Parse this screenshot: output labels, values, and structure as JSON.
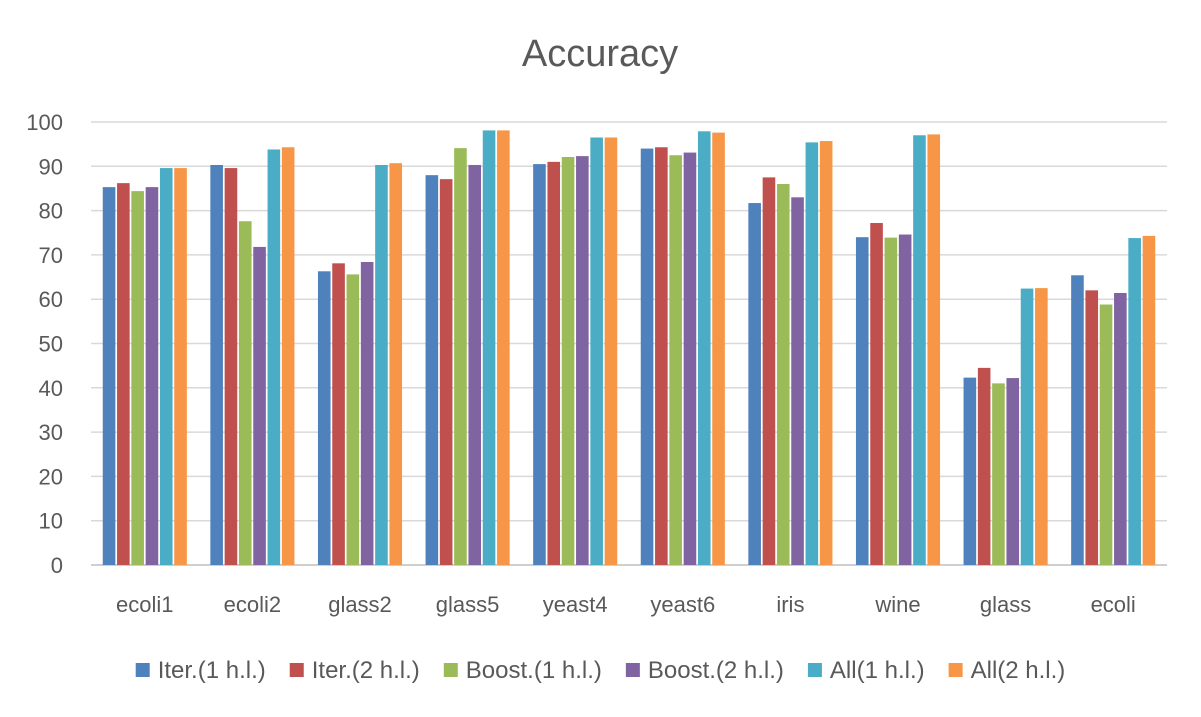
{
  "chart_data": {
    "type": "bar",
    "title": "Accuracy",
    "xlabel": "",
    "ylabel": "",
    "ylim": [
      0,
      100
    ],
    "yticks": [
      0,
      10,
      20,
      30,
      40,
      50,
      60,
      70,
      80,
      90,
      100
    ],
    "grid": true,
    "legend_position": "bottom",
    "categories": [
      "ecoli1",
      "ecoli2",
      "glass2",
      "glass5",
      "yeast4",
      "yeast6",
      "iris",
      "wine",
      "glass",
      "ecoli"
    ],
    "series": [
      {
        "name": "Iter.(1 h.l.)",
        "color": "#4F81BD",
        "values": [
          85.3,
          90.3,
          66.3,
          88.0,
          90.5,
          94.0,
          81.7,
          74.0,
          42.3,
          65.4
        ]
      },
      {
        "name": "Iter.(2 h.l.)",
        "color": "#C0504D",
        "values": [
          86.2,
          89.6,
          68.1,
          87.1,
          91.0,
          94.3,
          87.5,
          77.2,
          44.5,
          62.0
        ]
      },
      {
        "name": "Boost.(1 h.l.)",
        "color": "#9BBB59",
        "values": [
          84.4,
          77.6,
          65.6,
          94.1,
          92.1,
          92.5,
          86.0,
          73.9,
          41.0,
          58.8
        ]
      },
      {
        "name": "Boost.(2 h.l.)",
        "color": "#8064A2",
        "values": [
          85.3,
          71.8,
          68.4,
          90.3,
          92.3,
          93.1,
          83.0,
          74.6,
          42.2,
          61.4
        ]
      },
      {
        "name": "All(1 h.l.)",
        "color": "#4BACC6",
        "values": [
          89.6,
          93.8,
          90.3,
          98.1,
          96.5,
          97.9,
          95.4,
          97.0,
          62.4,
          73.8
        ]
      },
      {
        "name": "All(2 h.l.)",
        "color": "#F79646",
        "values": [
          89.6,
          94.3,
          90.7,
          98.1,
          96.5,
          97.6,
          95.7,
          97.2,
          62.5,
          74.3
        ]
      }
    ]
  }
}
